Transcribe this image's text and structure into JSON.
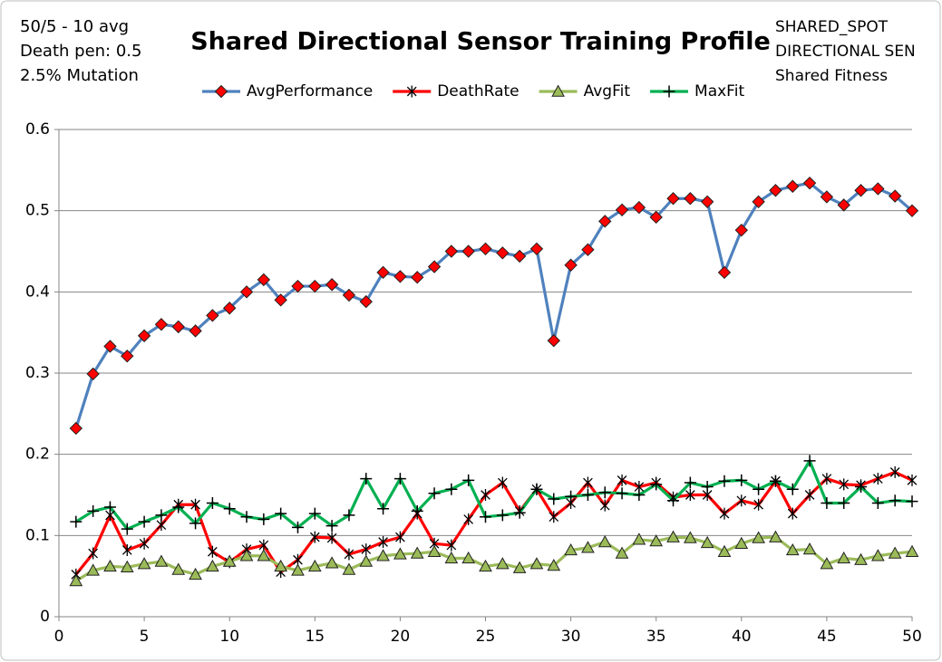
{
  "chart_data": {
    "type": "line",
    "title": "Shared Directional Sensor Training Profile",
    "notes_left": [
      "50/5 - 10 avg",
      "Death pen: 0.5",
      "2.5% Mutation"
    ],
    "notes_right": [
      "SHARED_SPOT",
      "DIRECTIONAL SEN",
      "Shared Fitness"
    ],
    "x": [
      1,
      2,
      3,
      4,
      5,
      6,
      7,
      8,
      9,
      10,
      11,
      12,
      13,
      14,
      15,
      16,
      17,
      18,
      19,
      20,
      21,
      22,
      23,
      24,
      25,
      26,
      27,
      28,
      29,
      30,
      31,
      32,
      33,
      34,
      35,
      36,
      37,
      38,
      39,
      40,
      41,
      42,
      43,
      44,
      45,
      46,
      47,
      48,
      49,
      50
    ],
    "series": [
      {
        "name": "AvgPerformance",
        "color": "#4f81bd",
        "marker": "diamond",
        "marker_color": "#ff0000",
        "values": [
          0.232,
          0.299,
          0.333,
          0.321,
          0.346,
          0.36,
          0.357,
          0.352,
          0.371,
          0.38,
          0.4,
          0.415,
          0.39,
          0.407,
          0.407,
          0.409,
          0.396,
          0.388,
          0.424,
          0.419,
          0.418,
          0.431,
          0.45,
          0.45,
          0.453,
          0.448,
          0.444,
          0.453,
          0.34,
          0.433,
          0.452,
          0.487,
          0.501,
          0.504,
          0.492,
          0.515,
          0.515,
          0.511,
          0.424,
          0.476,
          0.511,
          0.525,
          0.53,
          0.534,
          0.517,
          0.507,
          0.525,
          0.527,
          0.518,
          0.5
        ]
      },
      {
        "name": "DeathRate",
        "color": "#ff0000",
        "marker": "asterisk",
        "marker_color": "#000000",
        "values": [
          0.052,
          0.078,
          0.125,
          0.082,
          0.09,
          0.113,
          0.138,
          0.138,
          0.08,
          0.067,
          0.083,
          0.088,
          0.055,
          0.07,
          0.098,
          0.097,
          0.077,
          0.083,
          0.092,
          0.098,
          0.127,
          0.09,
          0.088,
          0.12,
          0.15,
          0.165,
          0.13,
          0.157,
          0.123,
          0.14,
          0.165,
          0.137,
          0.168,
          0.16,
          0.165,
          0.147,
          0.15,
          0.15,
          0.127,
          0.143,
          0.138,
          0.167,
          0.127,
          0.15,
          0.17,
          0.163,
          0.162,
          0.17,
          0.178,
          0.168
        ]
      },
      {
        "name": "AvgFit",
        "color": "#9bbb59",
        "marker": "triangle",
        "marker_color": "#9bbb59",
        "values": [
          0.044,
          0.057,
          0.062,
          0.061,
          0.065,
          0.068,
          0.058,
          0.052,
          0.062,
          0.068,
          0.075,
          0.075,
          0.062,
          0.057,
          0.062,
          0.066,
          0.058,
          0.068,
          0.075,
          0.077,
          0.078,
          0.08,
          0.072,
          0.072,
          0.062,
          0.065,
          0.06,
          0.065,
          0.063,
          0.082,
          0.085,
          0.092,
          0.078,
          0.095,
          0.093,
          0.098,
          0.097,
          0.091,
          0.08,
          0.09,
          0.097,
          0.098,
          0.082,
          0.083,
          0.065,
          0.072,
          0.07,
          0.075,
          0.078,
          0.08
        ]
      },
      {
        "name": "MaxFit",
        "color": "#00b050",
        "marker": "plus",
        "marker_color": "#000000",
        "values": [
          0.117,
          0.13,
          0.135,
          0.108,
          0.117,
          0.125,
          0.135,
          0.115,
          0.14,
          0.133,
          0.123,
          0.12,
          0.127,
          0.11,
          0.127,
          0.112,
          0.125,
          0.17,
          0.133,
          0.17,
          0.13,
          0.152,
          0.157,
          0.168,
          0.123,
          0.125,
          0.128,
          0.157,
          0.145,
          0.148,
          0.15,
          0.153,
          0.152,
          0.15,
          0.163,
          0.143,
          0.165,
          0.16,
          0.167,
          0.168,
          0.157,
          0.167,
          0.157,
          0.192,
          0.14,
          0.14,
          0.16,
          0.14,
          0.143,
          0.142
        ]
      }
    ],
    "xlim": [
      0,
      50
    ],
    "xticks": [
      0,
      5,
      10,
      15,
      20,
      25,
      30,
      35,
      40,
      45,
      50
    ],
    "ylim": [
      0,
      0.6
    ],
    "yticks": [
      0,
      0.1,
      0.2,
      0.3,
      0.4,
      0.5,
      0.6
    ],
    "grid": true,
    "legend": "top"
  }
}
